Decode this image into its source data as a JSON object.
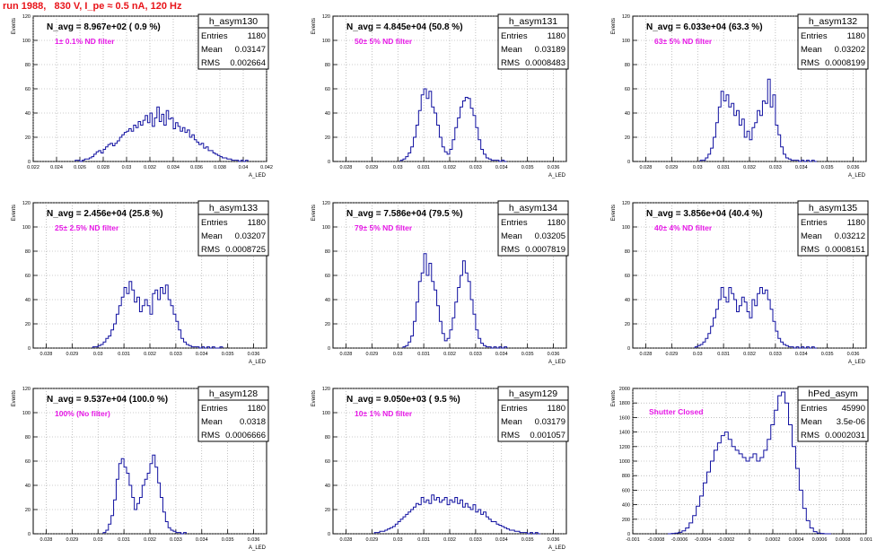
{
  "header": {
    "run_title": "run 1988,   830 V, I_pe ≈ 0.5 nA, 120 Hz"
  },
  "colors": {
    "title": "#e8141a",
    "filter_label": "#e618e6",
    "hist_line": "#1010a0",
    "grid": "#9a9a9a"
  },
  "chart_data": [
    {
      "type": "histogram",
      "name": "h_asym130",
      "nav_label": "N_avg = 8.967e+02 ( 0.9 %)",
      "filter_label": "1± 0.1% ND filter",
      "stats": {
        "Entries": "1180",
        "Mean": "0.03147",
        "RMS": "0.002664"
      },
      "ylabel": "Events",
      "xlabel": "A_LED",
      "xlim": [
        0.022,
        0.042
      ],
      "ylim": [
        0,
        120
      ],
      "xticks": [
        0.022,
        0.024,
        0.026,
        0.028,
        0.03,
        0.032,
        0.034,
        0.036,
        0.038,
        0.04,
        0.042
      ],
      "xtick_labels": [
        "0.022",
        "0.024",
        "0.026",
        "0.028",
        "0.03",
        "0.032",
        "0.034",
        "0.036",
        "0.038",
        "0.04",
        "0.042"
      ],
      "yticks": [
        0,
        20,
        40,
        60,
        80,
        100,
        120
      ],
      "ytick_labels": [
        "0",
        "20",
        "40",
        "60",
        "80",
        "100",
        "120"
      ],
      "bin_edges": [
        0.0256,
        0.0404
      ],
      "values": [
        1,
        1,
        0,
        1,
        2,
        2,
        3,
        4,
        6,
        8,
        9,
        7,
        10,
        12,
        14,
        15,
        13,
        15,
        17,
        20,
        22,
        24,
        25,
        27,
        25,
        30,
        28,
        33,
        30,
        34,
        38,
        32,
        40,
        29,
        36,
        45,
        33,
        39,
        30,
        42,
        35,
        36,
        27,
        32,
        29,
        25,
        28,
        24,
        26,
        20,
        22,
        18,
        16,
        14,
        15,
        11,
        12,
        9,
        9,
        7,
        6,
        5,
        4,
        3,
        3,
        2,
        2,
        1,
        1,
        1,
        0,
        1,
        0,
        1
      ]
    },
    {
      "type": "histogram",
      "name": "h_asym131",
      "nav_label": "N_avg = 4.845e+04 (50.8 %)",
      "filter_label": "50± 5% ND filter",
      "stats": {
        "Entries": "1180",
        "Mean": "0.03189",
        "RMS": "0.0008483"
      },
      "ylabel": "Events",
      "xlabel": "A_LED",
      "xlim": [
        0.0275,
        0.0365
      ],
      "ylim": [
        0,
        120
      ],
      "xticks": [
        0.028,
        0.029,
        0.03,
        0.031,
        0.032,
        0.033,
        0.034,
        0.035,
        0.036
      ],
      "xtick_labels": [
        "0.028",
        "0.029",
        "0.03",
        "0.031",
        "0.032",
        "0.033",
        "0.034",
        "0.035",
        "0.036"
      ],
      "yticks": [
        0,
        20,
        40,
        60,
        80,
        100,
        120
      ],
      "ytick_labels": [
        "0",
        "20",
        "40",
        "60",
        "80",
        "100",
        "120"
      ],
      "bin_edges": [
        0.0301,
        0.0342
      ],
      "values": [
        1,
        2,
        4,
        7,
        12,
        20,
        30,
        42,
        55,
        60,
        52,
        58,
        45,
        40,
        30,
        20,
        12,
        8,
        6,
        10,
        18,
        28,
        36,
        45,
        50,
        53,
        52,
        44,
        38,
        28,
        18,
        10,
        6,
        3,
        2,
        1,
        1,
        1,
        0,
        1,
        0
      ]
    },
    {
      "type": "histogram",
      "name": "h_asym132",
      "nav_label": "N_avg = 6.033e+04 (63.3 %)",
      "filter_label": "63± 5% ND filter",
      "stats": {
        "Entries": "1180",
        "Mean": "0.03202",
        "RMS": "0.0008199"
      },
      "ylabel": "Events",
      "xlabel": "A_LED",
      "xlim": [
        0.0275,
        0.0365
      ],
      "ylim": [
        0,
        120
      ],
      "xticks": [
        0.028,
        0.029,
        0.03,
        0.031,
        0.032,
        0.033,
        0.034,
        0.035,
        0.036
      ],
      "xtick_labels": [
        "0.028",
        "0.029",
        "0.03",
        "0.031",
        "0.032",
        "0.033",
        "0.034",
        "0.035",
        "0.036"
      ],
      "yticks": [
        0,
        20,
        40,
        60,
        80,
        100,
        120
      ],
      "ytick_labels": [
        "0",
        "20",
        "40",
        "60",
        "80",
        "100",
        "120"
      ],
      "bin_edges": [
        0.0301,
        0.0346
      ],
      "values": [
        1,
        1,
        3,
        6,
        11,
        20,
        32,
        45,
        58,
        50,
        55,
        45,
        48,
        38,
        42,
        30,
        35,
        20,
        25,
        18,
        28,
        32,
        42,
        38,
        50,
        48,
        68,
        45,
        55,
        30,
        22,
        12,
        6,
        3,
        2,
        1,
        1,
        1,
        0,
        1,
        0,
        1,
        0,
        1,
        0
      ]
    },
    {
      "type": "histogram",
      "name": "h_asym133",
      "nav_label": "N_avg = 2.456e+04 (25.8 %)",
      "filter_label": "25± 2.5% ND filter",
      "stats": {
        "Entries": "1180",
        "Mean": "0.03207",
        "RMS": "0.0008725"
      },
      "ylabel": "Events",
      "xlabel": "A_LED",
      "xlim": [
        0.0275,
        0.0365
      ],
      "ylim": [
        0,
        120
      ],
      "xticks": [
        0.028,
        0.029,
        0.03,
        0.031,
        0.032,
        0.033,
        0.034,
        0.035,
        0.036
      ],
      "xtick_labels": [
        "0.028",
        "0.029",
        "0.03",
        "0.031",
        "0.032",
        "0.033",
        "0.034",
        "0.035",
        "0.036"
      ],
      "yticks": [
        0,
        20,
        40,
        60,
        80,
        100,
        120
      ],
      "ytick_labels": [
        "0",
        "20",
        "40",
        "60",
        "80",
        "100",
        "120"
      ],
      "bin_edges": [
        0.0298,
        0.0348
      ],
      "values": [
        1,
        1,
        2,
        3,
        5,
        8,
        10,
        15,
        20,
        28,
        35,
        42,
        50,
        45,
        55,
        48,
        38,
        42,
        30,
        35,
        40,
        35,
        28,
        45,
        48,
        40,
        50,
        45,
        52,
        40,
        35,
        28,
        22,
        15,
        8,
        5,
        3,
        2,
        1,
        1,
        1,
        0,
        1,
        0,
        1,
        0,
        1,
        0,
        0,
        1
      ]
    },
    {
      "type": "histogram",
      "name": "h_asym134",
      "nav_label": "N_avg = 7.586e+04 (79.5 %)",
      "filter_label": "79± 5% ND filter",
      "stats": {
        "Entries": "1180",
        "Mean": "0.03205",
        "RMS": "0.0007819"
      },
      "ylabel": "Events",
      "xlabel": "A_LED",
      "xlim": [
        0.0275,
        0.0365
      ],
      "ylim": [
        0,
        120
      ],
      "xticks": [
        0.028,
        0.029,
        0.03,
        0.031,
        0.032,
        0.033,
        0.034,
        0.035,
        0.036
      ],
      "xtick_labels": [
        "0.028",
        "0.029",
        "0.03",
        "0.031",
        "0.032",
        "0.033",
        "0.034",
        "0.035",
        "0.036"
      ],
      "yticks": [
        0,
        20,
        40,
        60,
        80,
        100,
        120
      ],
      "ytick_labels": [
        "0",
        "20",
        "40",
        "60",
        "80",
        "100",
        "120"
      ],
      "bin_edges": [
        0.0302,
        0.0342
      ],
      "values": [
        1,
        2,
        5,
        10,
        22,
        38,
        55,
        62,
        78,
        60,
        70,
        55,
        48,
        35,
        22,
        12,
        6,
        8,
        15,
        25,
        38,
        50,
        60,
        72,
        62,
        55,
        40,
        28,
        15,
        8,
        4,
        2,
        1,
        1,
        0,
        1,
        0,
        1,
        0,
        1
      ]
    },
    {
      "type": "histogram",
      "name": "h_asym135",
      "nav_label": "N_avg = 3.856e+04 (40.4 %)",
      "filter_label": "40± 4% ND filter",
      "stats": {
        "Entries": "1180",
        "Mean": "0.03212",
        "RMS": "0.0008151"
      },
      "ylabel": "Events",
      "xlabel": "A_LED",
      "xlim": [
        0.0275,
        0.0365
      ],
      "ylim": [
        0,
        120
      ],
      "xticks": [
        0.028,
        0.029,
        0.03,
        0.031,
        0.032,
        0.033,
        0.034,
        0.035,
        0.036
      ],
      "xtick_labels": [
        "0.028",
        "0.029",
        "0.03",
        "0.031",
        "0.032",
        "0.033",
        "0.034",
        "0.035",
        "0.036"
      ],
      "yticks": [
        0,
        20,
        40,
        60,
        80,
        100,
        120
      ],
      "ytick_labels": [
        "0",
        "20",
        "40",
        "60",
        "80",
        "100",
        "120"
      ],
      "bin_edges": [
        0.0299,
        0.0346
      ],
      "values": [
        1,
        2,
        3,
        5,
        8,
        12,
        18,
        25,
        32,
        40,
        50,
        42,
        38,
        50,
        45,
        40,
        30,
        35,
        42,
        38,
        30,
        25,
        40,
        35,
        45,
        50,
        45,
        48,
        40,
        32,
        22,
        14,
        8,
        5,
        3,
        2,
        1,
        1,
        0,
        1,
        0,
        1,
        0,
        1,
        0,
        1,
        0
      ]
    },
    {
      "type": "histogram",
      "name": "h_asym128",
      "nav_label": "N_avg = 9.537e+04 (100.0 %)",
      "filter_label": "100% (No filter)",
      "stats": {
        "Entries": "1180",
        "Mean": "0.0318",
        "RMS": "0.0006666"
      },
      "ylabel": "Events",
      "xlabel": "A_LED",
      "xlim": [
        0.0275,
        0.0365
      ],
      "ylim": [
        0,
        120
      ],
      "xticks": [
        0.028,
        0.029,
        0.03,
        0.031,
        0.032,
        0.033,
        0.034,
        0.035,
        0.036
      ],
      "xtick_labels": [
        "0.028",
        "0.029",
        "0.03",
        "0.031",
        "0.032",
        "0.033",
        "0.034",
        "0.035",
        "0.036"
      ],
      "yticks": [
        0,
        20,
        40,
        60,
        80,
        100,
        120
      ],
      "ytick_labels": [
        "0",
        "20",
        "40",
        "60",
        "80",
        "100",
        "120"
      ],
      "bin_edges": [
        0.0302,
        0.0334
      ],
      "values": [
        1,
        3,
        8,
        15,
        28,
        45,
        58,
        62,
        55,
        50,
        40,
        30,
        20,
        25,
        30,
        40,
        45,
        50,
        58,
        65,
        55,
        42,
        30,
        18,
        10,
        5,
        3,
        2,
        1,
        1,
        0,
        1
      ]
    },
    {
      "type": "histogram",
      "name": "h_asym129",
      "nav_label": "N_avg = 9.050e+03 ( 9.5 %)",
      "filter_label": "10± 1% ND filter",
      "stats": {
        "Entries": "1180",
        "Mean": "0.03179",
        "RMS": "0.001057"
      },
      "ylabel": "Events",
      "xlabel": "A_LED",
      "xlim": [
        0.0275,
        0.0365
      ],
      "ylim": [
        0,
        120
      ],
      "xticks": [
        0.028,
        0.029,
        0.03,
        0.031,
        0.032,
        0.033,
        0.034,
        0.035,
        0.036
      ],
      "xtick_labels": [
        "0.028",
        "0.029",
        "0.03",
        "0.031",
        "0.032",
        "0.033",
        "0.034",
        "0.035",
        "0.036"
      ],
      "yticks": [
        0,
        20,
        40,
        60,
        80,
        100,
        120
      ],
      "ytick_labels": [
        "0",
        "20",
        "40",
        "60",
        "80",
        "100",
        "120"
      ],
      "bin_edges": [
        0.0291,
        0.0355
      ],
      "values": [
        1,
        1,
        2,
        2,
        3,
        4,
        5,
        6,
        8,
        10,
        12,
        14,
        16,
        18,
        20,
        22,
        25,
        24,
        30,
        26,
        28,
        25,
        32,
        28,
        30,
        26,
        28,
        30,
        24,
        28,
        26,
        30,
        25,
        28,
        22,
        25,
        22,
        20,
        24,
        18,
        20,
        16,
        18,
        14,
        12,
        10,
        10,
        8,
        7,
        6,
        5,
        4,
        3,
        3,
        2,
        2,
        1,
        1,
        1,
        0,
        1,
        0,
        1,
        0
      ]
    },
    {
      "type": "histogram",
      "name": "hPed_asym",
      "nav_label": "",
      "filter_label": "Shutter Closed",
      "stats": {
        "Entries": "45990",
        "Mean": "3.5e-06",
        "RMS": "0.0002031"
      },
      "ylabel": "Events",
      "xlabel": "",
      "xlim": [
        -0.001,
        0.001
      ],
      "ylim": [
        0,
        2000
      ],
      "xticks": [
        -0.001,
        -0.0008,
        -0.0006,
        -0.0004,
        -0.0002,
        0,
        0.0002,
        0.0004,
        0.0006,
        0.0008,
        0.001
      ],
      "xtick_labels": [
        "-0.001",
        "-0.0008",
        "-0.0006",
        "-0.0004",
        "-0.0002",
        "0",
        "0.0002",
        "0.0004",
        "0.0006",
        "0.0008",
        "0.001"
      ],
      "yticks": [
        0,
        200,
        400,
        600,
        800,
        1000,
        1200,
        1400,
        1600,
        1800,
        2000
      ],
      "ytick_labels": [
        "0",
        "200",
        "400",
        "600",
        "800",
        "1000",
        "1200",
        "1400",
        "1600",
        "1800",
        "2000"
      ],
      "bin_edges": [
        -0.0007,
        0.0007
      ],
      "values": [
        0,
        5,
        10,
        20,
        40,
        80,
        150,
        250,
        380,
        520,
        700,
        850,
        1000,
        1150,
        1250,
        1350,
        1400,
        1300,
        1200,
        1150,
        1100,
        1050,
        1000,
        1050,
        1100,
        1000,
        1050,
        1150,
        1300,
        1500,
        1700,
        1900,
        1950,
        1800,
        1500,
        1200,
        900,
        600,
        350,
        180,
        80,
        30,
        10,
        5,
        0,
        0
      ]
    }
  ]
}
